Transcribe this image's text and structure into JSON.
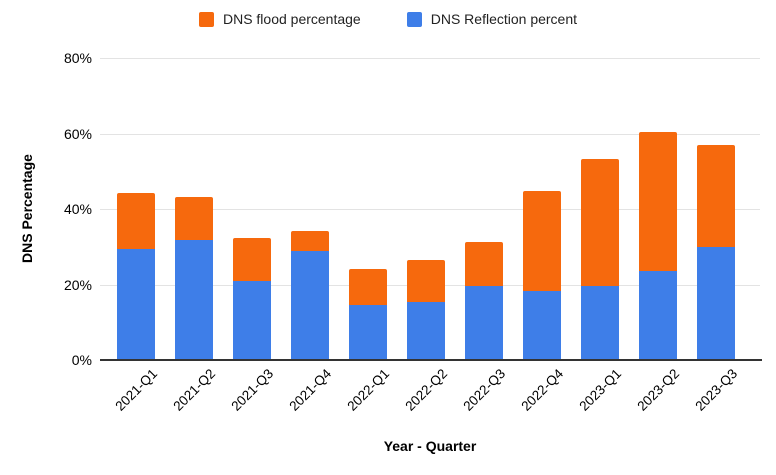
{
  "chart_data": {
    "type": "bar",
    "stacked": true,
    "title": "",
    "xlabel": "Year - Quarter",
    "ylabel": "DNS Percentage",
    "categories": [
      "2021-Q1",
      "2021-Q2",
      "2021-Q3",
      "2021-Q4",
      "2022-Q1",
      "2022-Q2",
      "2022-Q3",
      "2022-Q4",
      "2023-Q1",
      "2023-Q2",
      "2023-Q3"
    ],
    "series": [
      {
        "name": "DNS Reflection percent",
        "color": "#3E7EE8",
        "values": [
          29.5,
          31.8,
          21.0,
          28.8,
          14.5,
          15.5,
          19.6,
          18.4,
          19.5,
          23.5,
          30.0
        ]
      },
      {
        "name": "DNS flood percentage",
        "color": "#F6690D",
        "values": [
          14.7,
          11.4,
          11.3,
          5.4,
          9.7,
          11.0,
          11.6,
          26.5,
          33.7,
          37.0,
          27.0
        ]
      }
    ],
    "totals": [
      44.2,
      43.2,
      32.3,
      34.2,
      24.2,
      26.5,
      31.2,
      44.9,
      53.2,
      60.5,
      57.0
    ],
    "ylim": [
      0,
      80
    ],
    "yticks": [
      {
        "value": 0,
        "label": "0%"
      },
      {
        "value": 20,
        "label": "20%"
      },
      {
        "value": 40,
        "label": "40%"
      },
      {
        "value": 60,
        "label": "60%"
      },
      {
        "value": 80,
        "label": "80%"
      }
    ],
    "grid": true,
    "x_tick_rotation_deg": -45,
    "legend_position": "top",
    "legend": [
      {
        "label": "DNS flood percentage",
        "color": "#F6690D"
      },
      {
        "label": "DNS Reflection percent",
        "color": "#3E7EE8"
      }
    ]
  },
  "colors": {
    "background": "#FFFFFF",
    "gridline": "#E3E3E3",
    "axis_line": "#333333",
    "text": "#000000"
  }
}
